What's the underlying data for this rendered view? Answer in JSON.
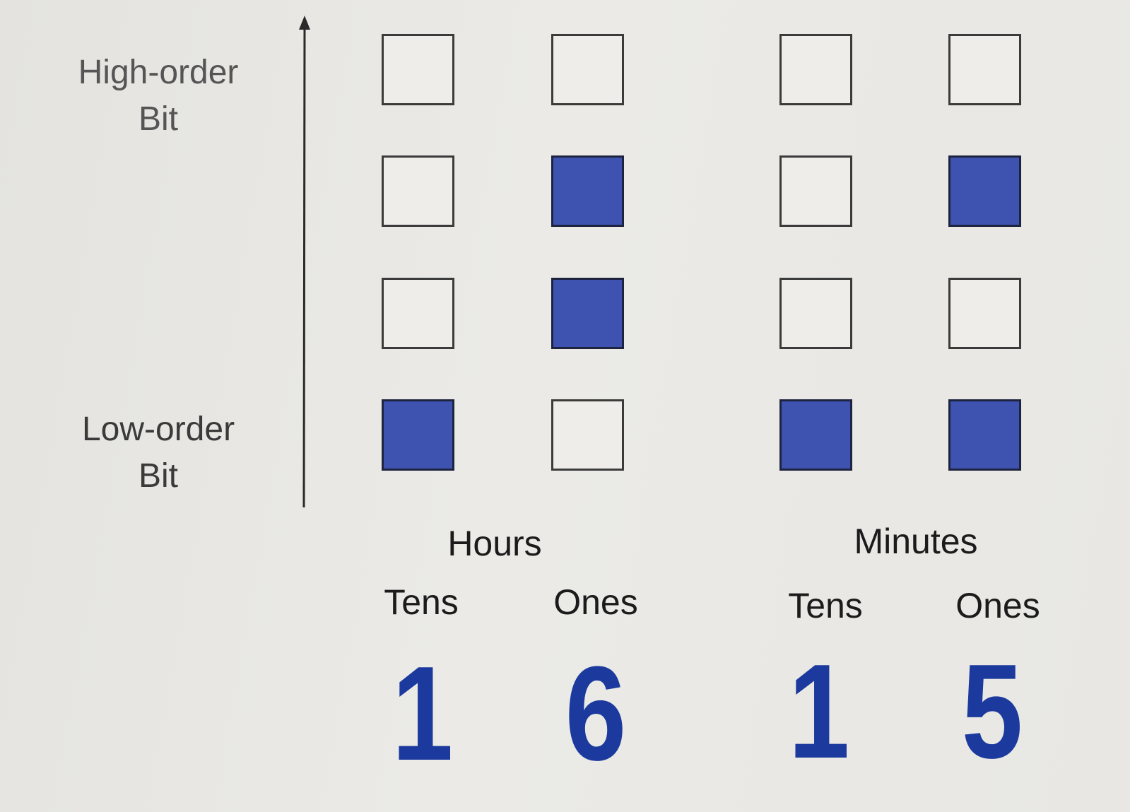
{
  "labels": {
    "high": [
      "High-order",
      "Bit"
    ],
    "low": [
      "Low-order",
      "Bit"
    ]
  },
  "groups": [
    {
      "label": "Hours",
      "columns": [
        {
          "label": "Tens",
          "digit": "1",
          "bits_high_to_low": [
            0,
            0,
            0,
            1
          ]
        },
        {
          "label": "Ones",
          "digit": "6",
          "bits_high_to_low": [
            0,
            1,
            1,
            0
          ]
        }
      ]
    },
    {
      "label": "Minutes",
      "columns": [
        {
          "label": "Tens",
          "digit": "1",
          "bits_high_to_low": [
            0,
            0,
            0,
            1
          ]
        },
        {
          "label": "Ones",
          "digit": "5",
          "bits_high_to_low": [
            0,
            1,
            0,
            1
          ]
        }
      ]
    }
  ],
  "colors": {
    "bit_on": "#3e52b0",
    "bit_off": "#eeede9",
    "digit": "#1c3a9e",
    "background": "#e9e8e4"
  }
}
